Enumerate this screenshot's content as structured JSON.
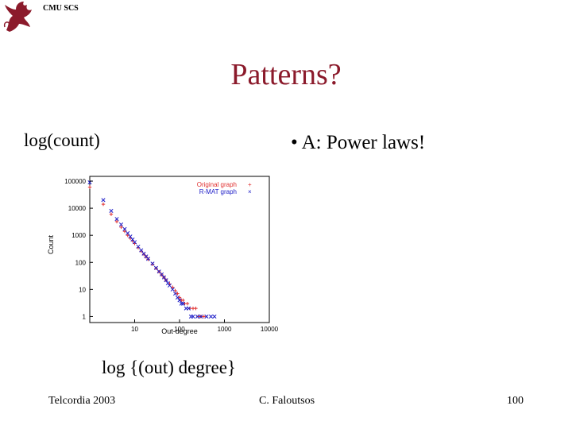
{
  "header": {
    "label": "CMU SCS",
    "logo_icon": "griffin-logo-icon"
  },
  "slide": {
    "title": "Patterns?",
    "y_note": "log(count)",
    "bullet": "• A: Power laws!",
    "x_note": "log {(out) degree}"
  },
  "footer": {
    "left": "Telcordia 2003",
    "center": "C. Faloutsos",
    "page": "100"
  },
  "colors": {
    "title": "#8b1a2b",
    "original": "#e03030",
    "rmat": "#2020c8",
    "logo": "#8b1a2b"
  },
  "chart_data": {
    "type": "scatter",
    "xscale": "log",
    "yscale": "log",
    "xlim": [
      1,
      10000
    ],
    "ylim": [
      0.6,
      150000
    ],
    "xticks": [
      "10",
      "100",
      "1000",
      "10000"
    ],
    "yticks": [
      "1",
      "10",
      "100",
      "1000",
      "10000",
      "100000"
    ],
    "xlabel": "Out-degree",
    "ylabel": "Count",
    "legend_position": "top-right",
    "series": [
      {
        "name": "Original graph",
        "marker": "+",
        "points": [
          [
            1,
            60000
          ],
          [
            2,
            14000
          ],
          [
            3,
            6000
          ],
          [
            4,
            3200
          ],
          [
            5,
            2000
          ],
          [
            6,
            1400
          ],
          [
            7,
            1000
          ],
          [
            8,
            780
          ],
          [
            9,
            620
          ],
          [
            10,
            500
          ],
          [
            12,
            350
          ],
          [
            14,
            260
          ],
          [
            16,
            200
          ],
          [
            18,
            160
          ],
          [
            20,
            130
          ],
          [
            25,
            85
          ],
          [
            30,
            60
          ],
          [
            35,
            45
          ],
          [
            40,
            35
          ],
          [
            45,
            28
          ],
          [
            50,
            22
          ],
          [
            60,
            16
          ],
          [
            70,
            12
          ],
          [
            80,
            9
          ],
          [
            90,
            7
          ],
          [
            100,
            5
          ],
          [
            110,
            4
          ],
          [
            120,
            4
          ],
          [
            130,
            3
          ],
          [
            150,
            3
          ],
          [
            170,
            2
          ],
          [
            200,
            2
          ],
          [
            230,
            2
          ],
          [
            260,
            1
          ],
          [
            300,
            1
          ],
          [
            350,
            1
          ]
        ]
      },
      {
        "name": "R-MAT graph",
        "marker": "x",
        "points": [
          [
            1,
            90000
          ],
          [
            2,
            20000
          ],
          [
            3,
            8000
          ],
          [
            4,
            4000
          ],
          [
            5,
            2500
          ],
          [
            6,
            1700
          ],
          [
            7,
            1200
          ],
          [
            8,
            900
          ],
          [
            9,
            700
          ],
          [
            10,
            560
          ],
          [
            12,
            380
          ],
          [
            14,
            280
          ],
          [
            16,
            210
          ],
          [
            18,
            165
          ],
          [
            20,
            135
          ],
          [
            25,
            90
          ],
          [
            30,
            62
          ],
          [
            35,
            46
          ],
          [
            40,
            36
          ],
          [
            45,
            28
          ],
          [
            50,
            22
          ],
          [
            55,
            17
          ],
          [
            60,
            14
          ],
          [
            70,
            10
          ],
          [
            80,
            7
          ],
          [
            90,
            5
          ],
          [
            100,
            4
          ],
          [
            110,
            3
          ],
          [
            120,
            3
          ],
          [
            140,
            2
          ],
          [
            160,
            2
          ],
          [
            180,
            1
          ],
          [
            200,
            1
          ],
          [
            250,
            1
          ],
          [
            300,
            1
          ],
          [
            400,
            1
          ],
          [
            500,
            1
          ],
          [
            600,
            1
          ]
        ]
      }
    ]
  }
}
